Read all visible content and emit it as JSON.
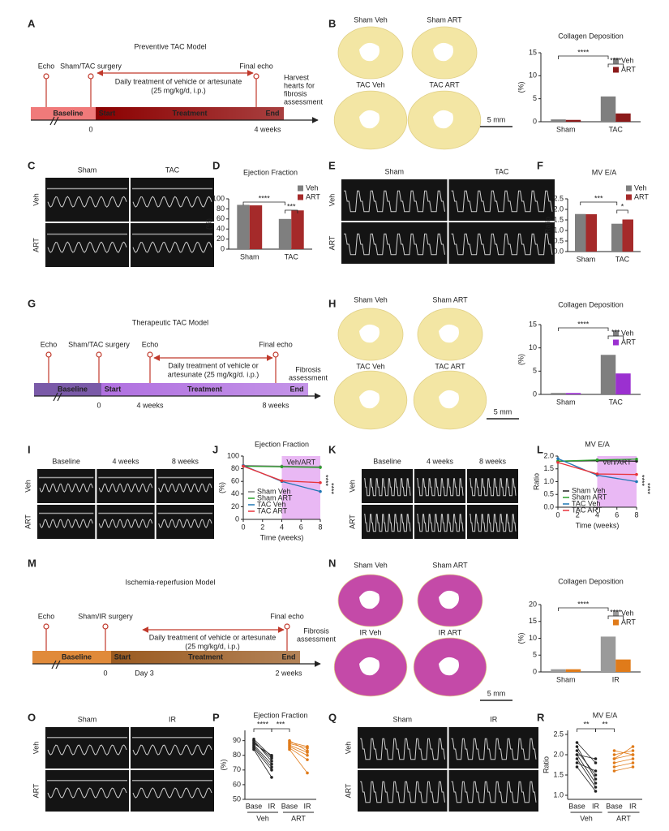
{
  "letters": [
    "A",
    "B",
    "C",
    "D",
    "E",
    "F",
    "G",
    "H",
    "I",
    "J",
    "K",
    "L",
    "M",
    "N",
    "O",
    "P",
    "Q",
    "R"
  ],
  "timelines": [
    {
      "title": "Preventive TAC Model",
      "color": "#b22222",
      "bar_colors": [
        "#f07a7a",
        "#8b0000"
      ],
      "events": [
        "Echo",
        "Sham/TAC surgery",
        "Final echo"
      ],
      "treatment": [
        "Daily treatment of vehicle or artesunate",
        "(25 mg/kg/d, i.p.)"
      ],
      "assessment": [
        "Harvest",
        "hearts for",
        "fibrosis",
        "assessment"
      ],
      "segments": [
        "Baseline",
        "Start",
        "Treatment",
        "End"
      ],
      "ticks": [
        "0",
        "4 weeks"
      ]
    },
    {
      "title": "Therapeutic TAC Model",
      "color": "#3d2a8f",
      "bar_colors": [
        "#7a5aa8",
        "#b070e0"
      ],
      "events": [
        "Echo",
        "Sham/TAC surgery",
        "Echo",
        "Final echo"
      ],
      "treatment": [
        "Daily treatment of vehicle or",
        "artesunate (25 mg/kg/d. i.p.)"
      ],
      "assessment": [
        "Fibrosis",
        "assessment"
      ],
      "segments": [
        "Baseline",
        "Start",
        "Treatment",
        "End"
      ],
      "ticks": [
        "0",
        "4 weeks",
        "8 weeks"
      ]
    },
    {
      "title": "Ischemia-reperfusion Model",
      "color": "#e07b1a",
      "bar_colors": [
        "#e08a3a",
        "#9a5a20"
      ],
      "events": [
        "Echo",
        "Sham/IR surgery",
        "Final echo"
      ],
      "treatment": [
        "Daily treatment of vehicle or artesunate",
        "(25 mg/kg/d, i.p.)"
      ],
      "assessment": [
        "Fibrosis",
        "assessment"
      ],
      "segments": [
        "Baseline",
        "Start",
        "Treatment",
        "End"
      ],
      "ticks": [
        "0",
        "Day 3",
        "2 weeks"
      ]
    }
  ],
  "hearts": [
    {
      "labels": [
        "Sham Veh",
        "Sham ART",
        "TAC Veh",
        "TAC ART"
      ],
      "scale": "5 mm",
      "label_color": "#b22222",
      "stain": "#f3e6a4"
    },
    {
      "labels": [
        "Sham Veh",
        "Sham ART",
        "TAC Veh",
        "TAC ART"
      ],
      "scale": "5 mm",
      "label_color": "#3d2a8f",
      "stain": "#f3e6a4"
    },
    {
      "labels": [
        "Sham Veh",
        "Sham ART",
        "IR Veh",
        "IR ART"
      ],
      "scale": "5 mm",
      "label_color": "#e07b1a",
      "stain": "#c44aa8"
    }
  ],
  "echoes": [
    {
      "columns": [
        "Sham",
        "TAC"
      ],
      "rows": [
        "Veh",
        "ART"
      ],
      "color": "#b22222"
    },
    {
      "columns": [
        "Sham",
        "TAC"
      ],
      "rows": [
        "Veh",
        "ART"
      ],
      "color": "#b22222"
    },
    {
      "columns": [
        "Baseline",
        "4 weeks",
        "8 weeks"
      ],
      "rows": [
        "Veh",
        "ART"
      ],
      "color": "#3d2a8f"
    },
    {
      "columns": [
        "Baseline",
        "4 weeks",
        "8 weeks"
      ],
      "rows": [
        "Veh",
        "ART"
      ],
      "color": "#3d2a8f"
    },
    {
      "columns": [
        "Sham",
        "IR"
      ],
      "rows": [
        "Veh",
        "ART"
      ],
      "color": "#e07b1a"
    },
    {
      "columns": [
        "Sham",
        "IR"
      ],
      "rows": [
        "Veh",
        "ART"
      ],
      "color": "#e07b1a"
    }
  ],
  "bar_charts": [
    {
      "type": "bar",
      "title": "Collagen Deposition",
      "title_color": "#b22222",
      "ylabel": "(%)",
      "categories": [
        "Sham",
        "TAC"
      ],
      "series": [
        {
          "name": "Veh",
          "color": "#7f7f7f",
          "values": [
            0.5,
            5.5
          ]
        },
        {
          "name": "ART",
          "color": "#8b1a1a",
          "values": [
            0.4,
            1.8
          ]
        }
      ],
      "ylim": [
        0,
        15
      ],
      "yticks": [
        0,
        5,
        10,
        15
      ],
      "sig": [
        "****",
        "****"
      ]
    },
    {
      "type": "bar",
      "title": "Ejection Fraction",
      "title_color": "#b22222",
      "ylabel": "(%)",
      "categories": [
        "Sham",
        "TAC"
      ],
      "series": [
        {
          "name": "Veh",
          "color": "#7f7f7f",
          "values": [
            88,
            60
          ]
        },
        {
          "name": "ART",
          "color": "#a52a2a",
          "values": [
            87,
            77
          ]
        }
      ],
      "ylim": [
        0,
        100
      ],
      "yticks": [
        0,
        20,
        40,
        60,
        80,
        100
      ],
      "sig": [
        "****",
        "***"
      ]
    },
    {
      "type": "bar",
      "title": "MV E/A",
      "title_color": "#b22222",
      "ylabel": "Ratio",
      "categories": [
        "Sham",
        "TAC"
      ],
      "series": [
        {
          "name": "Veh",
          "color": "#7f7f7f",
          "values": [
            1.78,
            1.32
          ]
        },
        {
          "name": "ART",
          "color": "#a52a2a",
          "values": [
            1.77,
            1.52
          ]
        }
      ],
      "ylim": [
        0,
        2.5
      ],
      "yticks": [
        {
          "value": 0,
          "label": "0.0"
        },
        {
          "value": 0.5,
          "label": "0.5"
        },
        {
          "value": 1,
          "label": "1.0"
        },
        {
          "value": 1.5,
          "label": "1.5"
        },
        {
          "value": 2,
          "label": "2.0"
        },
        {
          "value": 2.5,
          "label": "2.5"
        }
      ],
      "sig": [
        "***",
        "*"
      ]
    },
    {
      "type": "bar",
      "title": "Collagen Deposition",
      "title_color": "#3d2a8f",
      "ylabel": "(%)",
      "categories": [
        "Sham",
        "TAC"
      ],
      "series": [
        {
          "name": "Veh",
          "color": "#7f7f7f",
          "values": [
            0.3,
            8.5
          ]
        },
        {
          "name": "ART",
          "color": "#9b30d0",
          "values": [
            0.3,
            4.5
          ]
        }
      ],
      "ylim": [
        0,
        15
      ],
      "yticks": [
        0,
        5,
        10,
        15
      ],
      "sig": [
        "****",
        "***"
      ]
    },
    {
      "type": "bar",
      "title": "Collagen Deposition",
      "title_color": "#e07b1a",
      "ylabel": "(%)",
      "categories": [
        "Sham",
        "IR"
      ],
      "series": [
        {
          "name": "Veh",
          "color": "#9a9a9a",
          "values": [
            0.8,
            10.5
          ]
        },
        {
          "name": "ART",
          "color": "#e07b1a",
          "values": [
            0.8,
            3.7
          ]
        }
      ],
      "ylim": [
        0,
        20
      ],
      "yticks": [
        0,
        5,
        10,
        15,
        20
      ],
      "sig": [
        "****",
        "****"
      ]
    }
  ],
  "line_charts": [
    {
      "type": "line",
      "title": "Ejection Fraction",
      "title_color": "#3d2a8f",
      "xlabel": "Time (weeks)",
      "ylabel": "(%)",
      "x": [
        0,
        4,
        8
      ],
      "series": [
        {
          "name": "Sham Veh",
          "color": "#7f7f7f",
          "values": [
            85,
            84,
            83
          ]
        },
        {
          "name": "Sham ART",
          "color": "#2ca02c",
          "values": [
            84,
            83,
            82
          ]
        },
        {
          "name": "TAC Veh",
          "color": "#1f77b4",
          "values": [
            85,
            60,
            44
          ]
        },
        {
          "name": "TAC ART",
          "color": "#e8333a",
          "values": [
            84,
            61,
            58
          ]
        }
      ],
      "xlim": [
        0,
        8
      ],
      "xticks": [
        0,
        2,
        4,
        6,
        8
      ],
      "ylim": [
        0,
        100
      ],
      "yticks": [
        0,
        20,
        40,
        60,
        80,
        100
      ],
      "shade": [
        4,
        8
      ],
      "shade_label": "Veh/ART",
      "sig": [
        "****",
        "****"
      ]
    },
    {
      "type": "line",
      "title": "MV E/A",
      "title_color": "#3d2a8f",
      "xlabel": "Time (weeks)",
      "ylabel": "Ratio",
      "x": [
        0,
        4,
        8
      ],
      "series": [
        {
          "name": "Sham Veh",
          "color": "#222222",
          "values": [
            1.8,
            1.82,
            1.8
          ]
        },
        {
          "name": "Sham ART",
          "color": "#2ca02c",
          "values": [
            1.8,
            1.85,
            1.88
          ]
        },
        {
          "name": "TAC Veh",
          "color": "#1f77b4",
          "values": [
            1.9,
            1.25,
            1.0
          ]
        },
        {
          "name": "TAC ART",
          "color": "#e8333a",
          "values": [
            1.75,
            1.3,
            1.28
          ]
        }
      ],
      "xlim": [
        0,
        8
      ],
      "xticks": [
        0,
        2,
        4,
        6,
        8
      ],
      "ylim": [
        0,
        2
      ],
      "yticks": [
        {
          "value": 0,
          "label": "0.0"
        },
        {
          "value": 0.5,
          "label": "0.5"
        },
        {
          "value": 1,
          "label": "1.0"
        },
        {
          "value": 1.5,
          "label": "1.5"
        },
        {
          "value": 2,
          "label": "2.0"
        }
      ],
      "shade": [
        4,
        8
      ],
      "shade_label": "Veh/ART",
      "sig": [
        "****",
        "****"
      ]
    }
  ],
  "paired_charts": [
    {
      "type": "paired",
      "title": "Ejection Fraction",
      "title_color": "#e07b1a",
      "ylabel": "(%)",
      "categories": [
        "Base",
        "IR",
        "Base",
        "IR"
      ],
      "groups": [
        "Veh",
        "ART"
      ],
      "colors": [
        "#222222",
        "#e07b1a"
      ],
      "ylim": [
        50,
        97
      ],
      "yticks": [
        50,
        60,
        70,
        80,
        90
      ],
      "pairs": [
        [
          [
            88,
            80
          ],
          [
            86,
            72
          ],
          [
            90,
            76
          ],
          [
            85,
            70
          ],
          [
            87,
            74
          ],
          [
            84,
            65
          ],
          [
            89,
            78
          ],
          [
            91,
            79
          ]
        ],
        [
          [
            88,
            85
          ],
          [
            86,
            80
          ],
          [
            90,
            83
          ],
          [
            85,
            77
          ],
          [
            87,
            82
          ],
          [
            84,
            68
          ],
          [
            89,
            86
          ]
        ]
      ],
      "sig": [
        "****",
        "***"
      ]
    },
    {
      "type": "paired",
      "title": "MV E/A",
      "title_color": "#e07b1a",
      "ylabel": "Ratio",
      "categories": [
        "Base",
        "IR",
        "Base",
        "IR"
      ],
      "groups": [
        "Veh",
        "ART"
      ],
      "colors": [
        "#222222",
        "#e07b1a"
      ],
      "ylim": [
        0.9,
        2.6
      ],
      "yticks": [
        {
          "value": 1,
          "label": "1.0"
        },
        {
          "value": 1.5,
          "label": "1.5"
        },
        {
          "value": 2,
          "label": "2.0"
        },
        {
          "value": 2.5,
          "label": "2.5"
        }
      ],
      "pairs": [
        [
          [
            2.3,
            1.8
          ],
          [
            2.1,
            1.5
          ],
          [
            2.0,
            1.3
          ],
          [
            1.9,
            1.2
          ],
          [
            1.8,
            1.6
          ],
          [
            2.2,
            1.4
          ],
          [
            1.7,
            1.1
          ],
          [
            2.0,
            1.9
          ]
        ],
        [
          [
            2.0,
            2.1
          ],
          [
            1.8,
            1.9
          ],
          [
            1.9,
            2.2
          ],
          [
            1.7,
            1.8
          ],
          [
            2.1,
            2.0
          ],
          [
            1.6,
            1.7
          ],
          [
            1.9,
            2.0
          ]
        ]
      ],
      "sig": [
        "**",
        "**"
      ]
    }
  ]
}
